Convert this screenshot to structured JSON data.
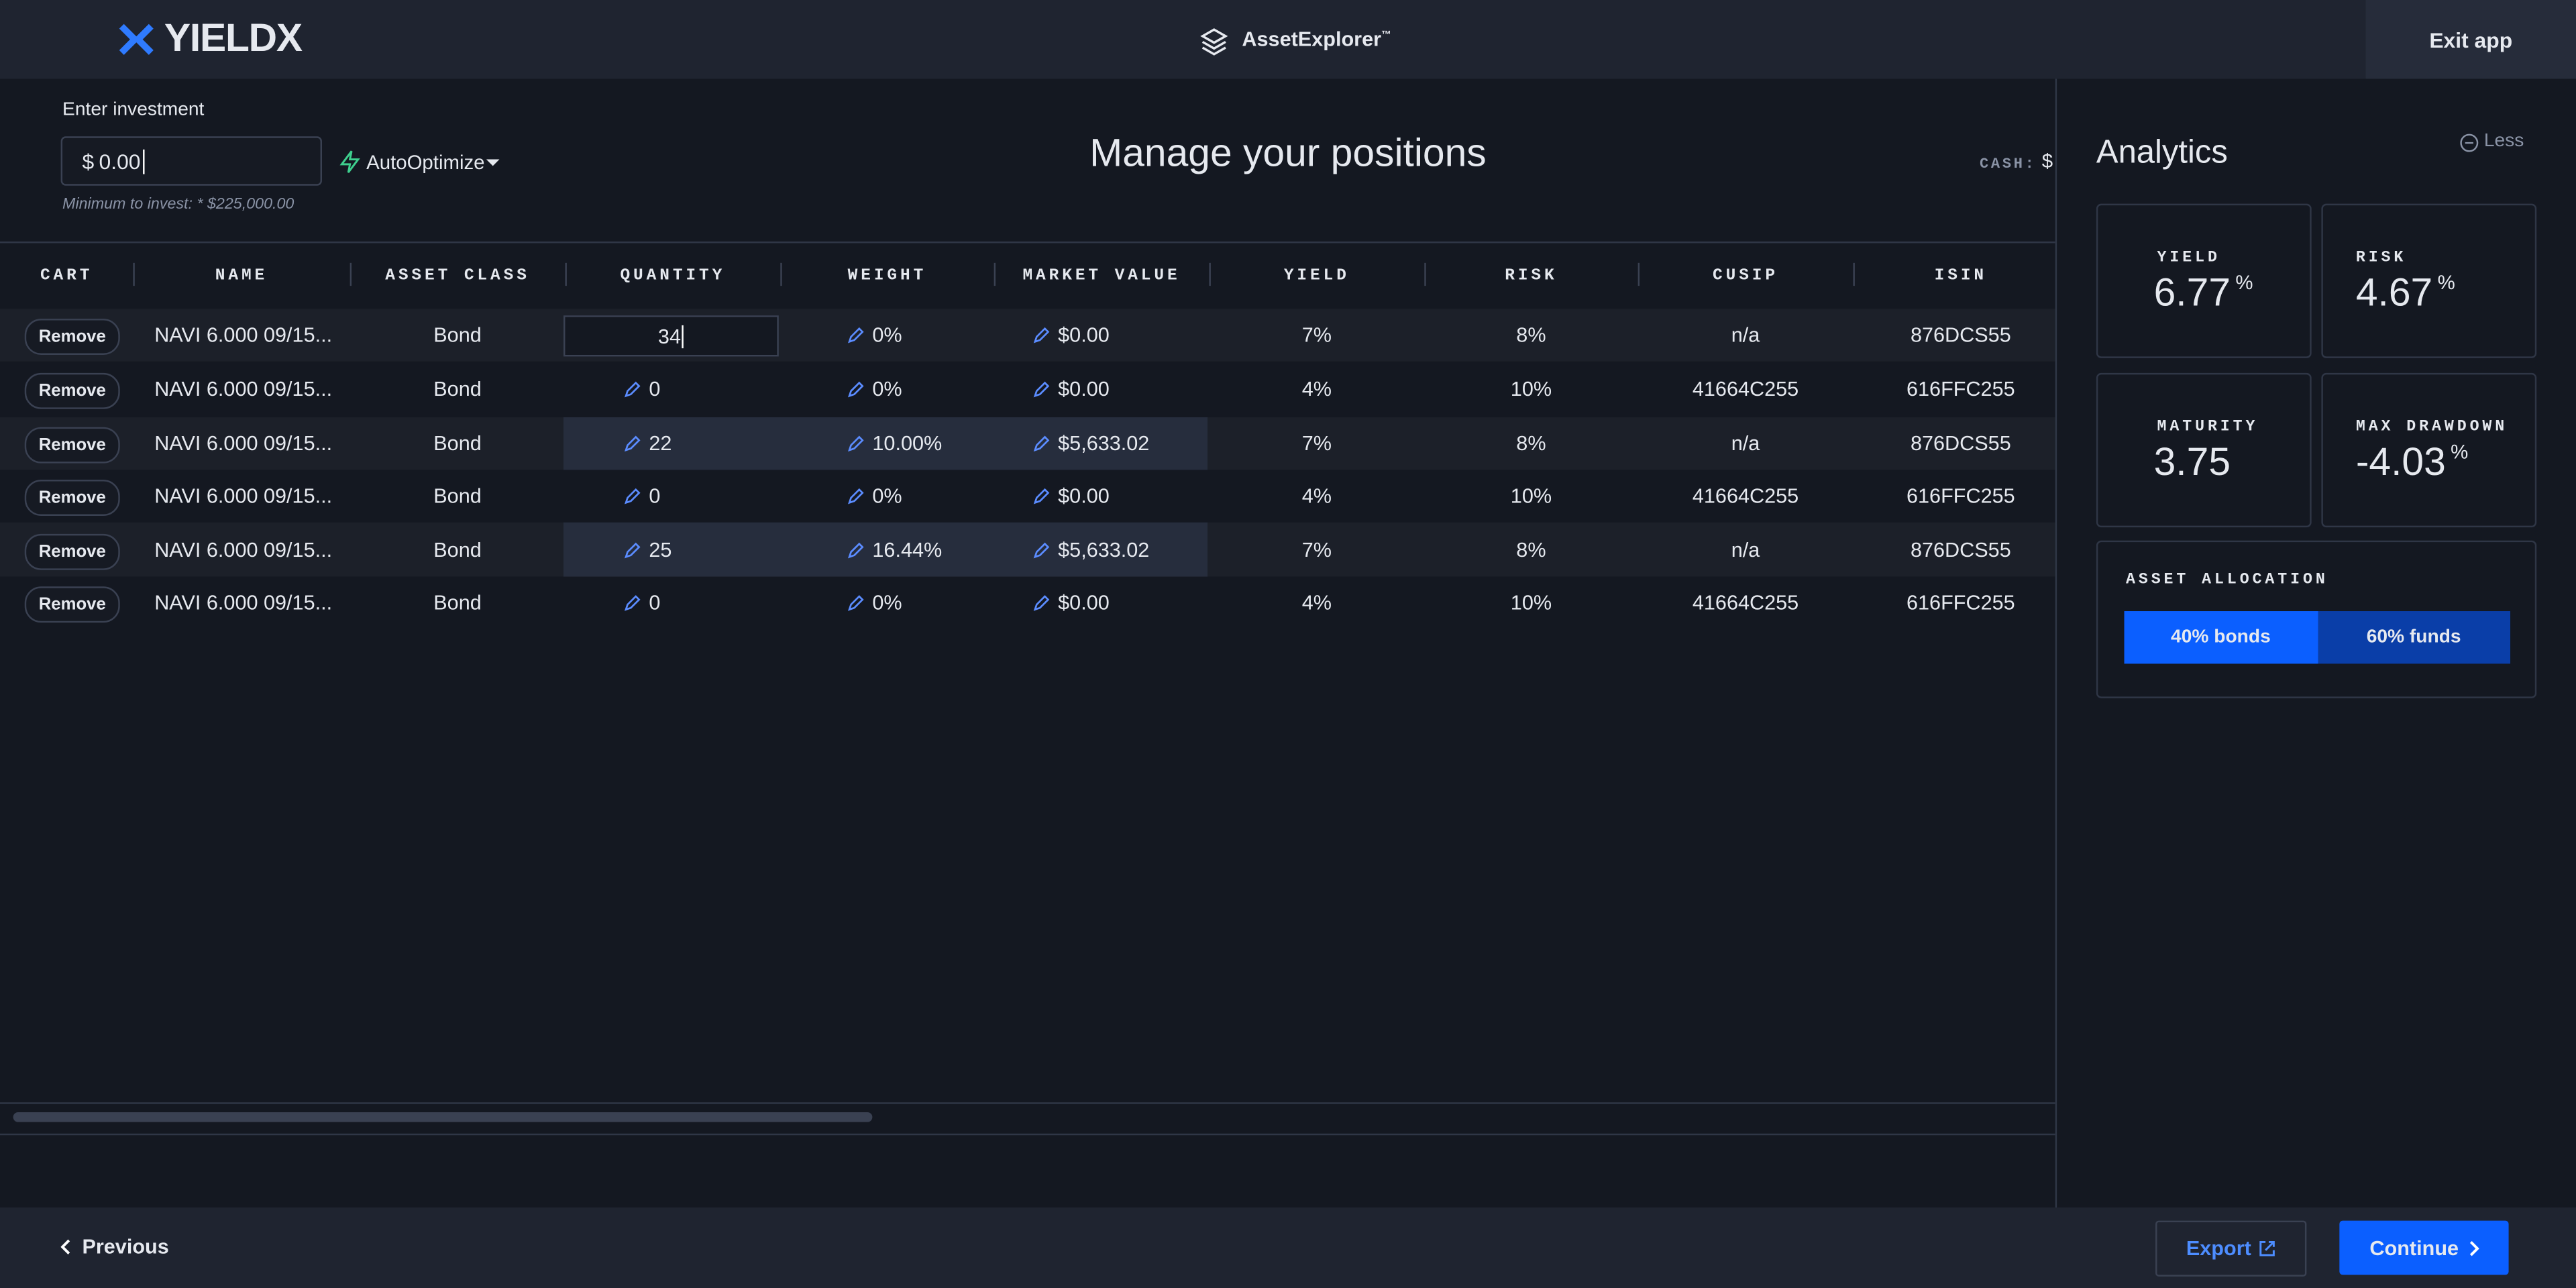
{
  "header": {
    "logo": "YIELDX",
    "app_name": "AssetExplorer",
    "trademark": "™",
    "exit": "Exit app"
  },
  "investment": {
    "label": "Enter investment",
    "currency": "$",
    "value": "0.00",
    "hint": "Minimum to invest: * $225,000.00",
    "auto_optimize": "AutoOptimize"
  },
  "page_title": "Manage your positions",
  "cash": {
    "label": "CASH:",
    "value": "$"
  },
  "table": {
    "columns": [
      "CART",
      "NAME",
      "ASSET CLASS",
      "QUANTITY",
      "WEIGHT",
      "MARKET VALUE",
      "YIELD",
      "RISK",
      "CUSIP",
      "ISIN"
    ],
    "rows": [
      [
        "Remove",
        "NAVI 6.000 09/15...",
        "Bond",
        "34",
        "0%",
        "$0.00",
        "7%",
        "8%",
        "n/a",
        "876DCS55"
      ],
      [
        "Remove",
        "NAVI 6.000 09/15...",
        "Bond",
        "0",
        "0%",
        "$0.00",
        "4%",
        "10%",
        "41664C255",
        "616FFC255"
      ],
      [
        "Remove",
        "NAVI 6.000 09/15...",
        "Bond",
        "22",
        "10.00%",
        "$5,633.02",
        "7%",
        "8%",
        "n/a",
        "876DCS55"
      ],
      [
        "Remove",
        "NAVI 6.000 09/15...",
        "Bond",
        "0",
        "0%",
        "$0.00",
        "4%",
        "10%",
        "41664C255",
        "616FFC255"
      ],
      [
        "Remove",
        "NAVI 6.000 09/15...",
        "Bond",
        "25",
        "16.44%",
        "$5,633.02",
        "7%",
        "8%",
        "n/a",
        "876DCS55"
      ],
      [
        "Remove",
        "NAVI 6.000 09/15...",
        "Bond",
        "0",
        "0%",
        "$0.00",
        "4%",
        "10%",
        "41664C255",
        "616FFC255"
      ]
    ]
  },
  "analytics": {
    "title": "Analytics",
    "toggle": "Less",
    "cards": [
      {
        "label": "YIELD",
        "value": "6.77",
        "unit": "%"
      },
      {
        "label": "RISK",
        "value": "4.67",
        "unit": "%"
      },
      {
        "label": "MATURITY",
        "value": "3.75"
      },
      {
        "label": "MAX DRAWDOWN",
        "value": "-4.03",
        "unit": "%"
      }
    ],
    "allocation": {
      "label": "ASSET ALLOCATION",
      "parts": [
        "40% bonds",
        "60% funds"
      ]
    }
  },
  "footer": {
    "previous": "Previous",
    "export": "Export",
    "continue": "Continue"
  }
}
